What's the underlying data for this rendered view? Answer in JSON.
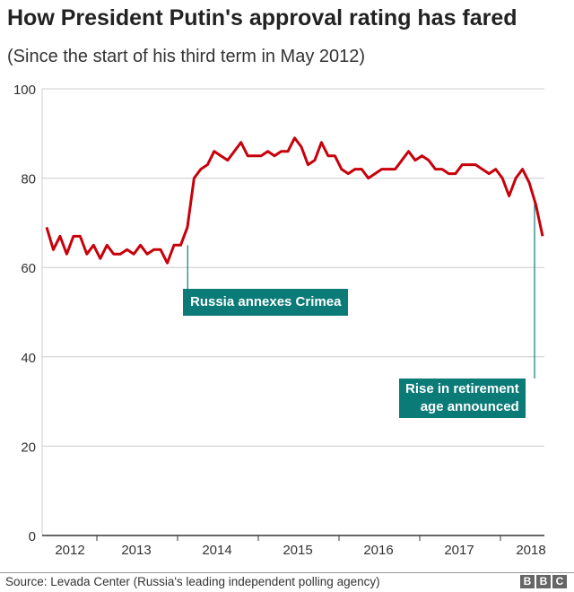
{
  "chart_data": {
    "type": "line",
    "title": "How President Putin's approval rating has fared",
    "subtitle": "(Since the start of his third term in May 2012)",
    "ylim": [
      0,
      100
    ],
    "yticks": [
      0,
      20,
      40,
      60,
      80,
      100
    ],
    "xtick_labels": [
      "2012",
      "2013",
      "2014",
      "2015",
      "2016",
      "2017",
      "2018"
    ],
    "grid": true,
    "line_color": "#c8000a",
    "start": "2012-05",
    "values": [
      69,
      64,
      67,
      63,
      67,
      67,
      63,
      65,
      62,
      65,
      63,
      63,
      64,
      63,
      65,
      63,
      64,
      64,
      61,
      65,
      65,
      69,
      80,
      82,
      83,
      86,
      85,
      84,
      86,
      88,
      85,
      85,
      85,
      86,
      85,
      86,
      86,
      89,
      87,
      83,
      84,
      88,
      85,
      85,
      82,
      81,
      82,
      82,
      80,
      81,
      82,
      82,
      82,
      84,
      86,
      84,
      85,
      84,
      82,
      82,
      81,
      81,
      83,
      83,
      83,
      82,
      81,
      82,
      80,
      76,
      80,
      82,
      79,
      74,
      67
    ],
    "annotations": [
      {
        "text": "Russia annexes Crimea",
        "date": "2014-03"
      },
      {
        "text_lines": [
          "Rise in retirement",
          "age announced"
        ],
        "date": "2018-06"
      }
    ],
    "annotation_color": "#0b7b78",
    "source": "Source: Levada Center (Russia's leading independent polling agency)"
  },
  "logo": "BBC"
}
